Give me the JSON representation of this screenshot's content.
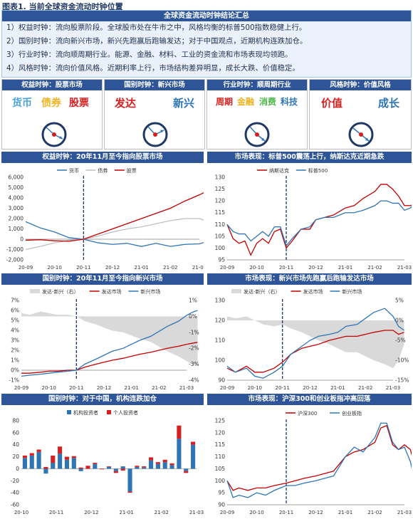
{
  "figure_title": "图表1. 当前全球资金流动时钟位置",
  "summary": {
    "heading": "全球资金流动时钟结论汇总",
    "lines": [
      "1）权益时钟：流向股票阶段。全球股市处在牛市之中，风格均衡的标普500指数稳健上行。",
      "2）国别时钟：流向新兴市场，新兴先跑赢后跑输发达；对于中国观点，近期机构连跌加仓。",
      "3）行业时钟：流向顺周期行业。能源、金融、材料、工业的资金流和市场表现均领跑。",
      "4）风格时钟：流向价值风格。近期利率上行，市场结构差异明显，成长大跌、价值稳定。"
    ]
  },
  "clocks": [
    {
      "heading": "权益时钟：股票市场",
      "labels": [
        {
          "text": "货币",
          "color": "#4aa3d8"
        },
        {
          "text": "债券",
          "color": "#f0b323"
        },
        {
          "text": "股票",
          "color": "#d62020"
        }
      ]
    },
    {
      "heading": "国别时钟：新兴市场",
      "labels": [
        {
          "text": "发达",
          "color": "#d62020"
        },
        {
          "text": "新兴",
          "color": "#2e75b6"
        }
      ]
    },
    {
      "heading": "行业时钟：顺周期行业",
      "labels": [
        {
          "text": "周期",
          "color": "#d62020"
        },
        {
          "text": "金融",
          "color": "#f0b323"
        },
        {
          "text": "消费",
          "color": "#4fb848"
        },
        {
          "text": "科技",
          "color": "#2e75b6"
        }
      ]
    },
    {
      "heading": "风格时钟：价值风格",
      "labels": [
        {
          "text": "价值",
          "color": "#d62020"
        },
        {
          "text": "成长",
          "color": "#2e75b6"
        }
      ]
    }
  ],
  "chart_data": [
    {
      "type": "line",
      "title": "权益时钟：20年11月至今指向股票市场",
      "x_ticks": [
        "20-09",
        "20-10",
        "20-11",
        "20-12",
        "21-01",
        "21-02",
        "21-03"
      ],
      "ylim": [
        -2000,
        6000
      ],
      "y_ticks": [
        "6,000",
        "5,000",
        "4,000",
        "3,000",
        "2,000",
        "1,000",
        "0",
        "-1,000",
        "-2,000"
      ],
      "marker_x": 2,
      "series": [
        {
          "name": "货币",
          "color": "#2e75b6",
          "x": [
            0,
            0.5,
            1,
            1.5,
            2,
            2.5,
            3,
            3.5,
            4,
            4.5,
            5,
            5.5,
            6,
            6.3
          ],
          "values": [
            1700,
            1100,
            700,
            150,
            0,
            -350,
            -500,
            -400,
            -700,
            -400,
            -700,
            -500,
            -450,
            -200
          ]
        },
        {
          "name": "债券",
          "color": "#bfbfbf",
          "x": [
            0,
            0.5,
            1,
            1.5,
            2,
            2.5,
            3,
            3.5,
            4,
            4.5,
            5,
            5.5,
            6,
            6.3
          ],
          "values": [
            -1000,
            -700,
            -350,
            -100,
            0,
            300,
            700,
            1000,
            1200,
            1500,
            1800,
            2000,
            2000,
            1700
          ]
        },
        {
          "name": "股票",
          "color": "#c00000",
          "x": [
            0,
            0.5,
            1,
            1.5,
            2,
            2.5,
            3,
            3.5,
            4,
            4.5,
            5,
            5.5,
            6,
            6.3
          ],
          "values": [
            -100,
            -50,
            -150,
            -200,
            0,
            500,
            1000,
            1500,
            2000,
            2500,
            3000,
            3700,
            4300,
            4700
          ]
        }
      ]
    },
    {
      "type": "line",
      "title": "市场表现：标普500震荡上行，纳斯达克近期急跌",
      "x_ticks": [
        "20-09",
        "20-10",
        "20-11",
        "20-12",
        "21-01",
        "21-02",
        "21-03"
      ],
      "ylim": [
        95,
        130
      ],
      "y_ticks": [
        "130",
        "125",
        "120",
        "115",
        "110",
        "105",
        "100",
        "95"
      ],
      "marker_x": 2,
      "series": [
        {
          "name": "纳斯达克",
          "color": "#c00000",
          "x": [
            0,
            0.2,
            0.4,
            0.6,
            0.8,
            1,
            1.2,
            1.4,
            1.6,
            1.8,
            2,
            2.2,
            2.5,
            2.8,
            3,
            3.3,
            3.6,
            4,
            4.3,
            4.6,
            5,
            5.2,
            5.4,
            5.6,
            5.8,
            6,
            6.2,
            6.4
          ],
          "values": [
            110,
            104,
            102,
            103,
            97,
            102,
            104,
            102,
            107,
            108,
            100,
            103,
            108,
            108,
            112,
            113,
            114,
            117,
            118,
            121,
            124,
            127,
            127,
            125,
            122,
            118,
            118,
            119
          ]
        },
        {
          "name": "标普500",
          "color": "#2e75b6",
          "x": [
            0,
            0.2,
            0.4,
            0.6,
            0.8,
            1,
            1.2,
            1.4,
            1.6,
            1.8,
            2,
            2.2,
            2.5,
            2.8,
            3,
            3.3,
            3.6,
            4,
            4.3,
            4.6,
            5,
            5.2,
            5.4,
            5.6,
            5.8,
            6,
            6.2,
            6.4
          ],
          "values": [
            110,
            107,
            106,
            106,
            103,
            105,
            107,
            105,
            109,
            109,
            101,
            104,
            108,
            109,
            112,
            113,
            113,
            115,
            115,
            116,
            118,
            120,
            120,
            119,
            119,
            116,
            117,
            120
          ]
        }
      ]
    },
    {
      "type": "line",
      "title": "国别时钟：20年11月至今指向新兴市场",
      "x_ticks": [
        "20-09",
        "20-10",
        "20-11",
        "20-12",
        "21-01",
        "21-02",
        "21-03"
      ],
      "ylim": [
        -1,
        7
      ],
      "y_ticks": [
        "7%",
        "6%",
        "5%",
        "4%",
        "3%",
        "2%",
        "1%",
        "0%",
        "-1%"
      ],
      "y2lim": [
        -4,
        1
      ],
      "y2_ticks": [
        "1%",
        "0%",
        "-1%",
        "-2%",
        "-3%",
        "-4%"
      ],
      "marker_x": 2,
      "series": [
        {
          "name": "发达-新兴（右）",
          "color": "#d9d9d9",
          "kind": "area",
          "axis": "right",
          "x": [
            0,
            0.3,
            0.7,
            1,
            1.3,
            1.7,
            2,
            2.3,
            2.7,
            3,
            3.3,
            3.7,
            4,
            4.3,
            4.7,
            5,
            5.3,
            5.7,
            6,
            6.2,
            6.4
          ],
          "values": [
            0.2,
            0.1,
            0.3,
            0.2,
            0.1,
            0.1,
            0,
            -0.3,
            -0.5,
            -0.7,
            -0.9,
            -1.0,
            -1.2,
            -1.4,
            -1.6,
            -1.9,
            -2.2,
            -2.5,
            -2.8,
            -3.0,
            -3.1
          ]
        },
        {
          "name": "发达市场",
          "color": "#c00000",
          "x": [
            0,
            0.3,
            0.7,
            1,
            1.3,
            1.7,
            2,
            2.3,
            2.7,
            3,
            3.3,
            3.7,
            4,
            4.3,
            4.7,
            5,
            5.3,
            5.7,
            6,
            6.2,
            6.4
          ],
          "values": [
            -0.3,
            -0.3,
            -0.2,
            -0.1,
            -0.1,
            0,
            0,
            0.3,
            0.6,
            0.8,
            1.0,
            1.2,
            1.4,
            1.6,
            1.8,
            2.0,
            2.2,
            2.4,
            2.6,
            2.7,
            2.8
          ]
        },
        {
          "name": "新兴市场",
          "color": "#2e75b6",
          "x": [
            0,
            0.3,
            0.7,
            1,
            1.3,
            1.7,
            2,
            2.3,
            2.7,
            3,
            3.3,
            3.7,
            4,
            4.3,
            4.7,
            5,
            5.3,
            5.7,
            6,
            6.2,
            6.4
          ],
          "values": [
            -0.6,
            -0.5,
            -0.4,
            -0.3,
            -0.2,
            -0.1,
            0,
            0.6,
            1.1,
            1.5,
            1.9,
            2.2,
            2.6,
            3.0,
            3.4,
            3.9,
            4.4,
            4.9,
            5.5,
            5.8,
            6.0
          ]
        }
      ]
    },
    {
      "type": "line",
      "title": "市场表现：新兴市场先跑赢后跑输发达市场",
      "x_ticks": [
        "20-09",
        "20-10",
        "20-11",
        "20-12",
        "21-01",
        "21-02",
        "21-03"
      ],
      "ylim": [
        90,
        130
      ],
      "y_ticks": [
        "130",
        "120",
        "110",
        "100",
        "90"
      ],
      "y2lim": [
        -15,
        5
      ],
      "y2_ticks": [
        "5%",
        "0%",
        "-5%",
        "-10%",
        "-15%"
      ],
      "marker_x": 2,
      "series": [
        {
          "name": "发达-新兴（右）",
          "color": "#d9d9d9",
          "kind": "area",
          "axis": "right",
          "x": [
            0,
            0.3,
            0.7,
            1,
            1.3,
            1.7,
            2,
            2.3,
            2.7,
            3,
            3.3,
            3.7,
            4,
            4.3,
            4.7,
            5,
            5.3,
            5.7,
            6,
            6.2,
            6.4
          ],
          "values": [
            1,
            0.5,
            1,
            0,
            -1,
            -1.5,
            -1,
            -2,
            -3,
            -4,
            -5,
            -6,
            -7,
            -8,
            -8,
            -9,
            -10,
            -11,
            -12,
            -10,
            -6
          ]
        },
        {
          "name": "发达市场",
          "color": "#c00000",
          "x": [
            0,
            0.3,
            0.7,
            1,
            1.3,
            1.7,
            2,
            2.3,
            2.7,
            3,
            3.3,
            3.7,
            4,
            4.3,
            4.7,
            5,
            5.3,
            5.7,
            6,
            6.2,
            6.4
          ],
          "values": [
            96,
            94,
            97,
            94,
            94,
            96,
            99,
            103,
            106,
            107,
            108,
            110,
            111,
            112,
            112,
            113,
            114,
            115,
            115,
            113,
            114
          ]
        },
        {
          "name": "新兴市场",
          "color": "#2e75b6",
          "x": [
            0,
            0.3,
            0.7,
            1,
            1.3,
            1.7,
            2,
            2.3,
            2.7,
            3,
            3.3,
            3.7,
            4,
            4.3,
            4.7,
            5,
            5.3,
            5.7,
            6,
            6.2,
            6.4
          ],
          "values": [
            97,
            94,
            96,
            92,
            91,
            94,
            97,
            103,
            107,
            110,
            112,
            113,
            114,
            117,
            118,
            121,
            124,
            126,
            122,
            117,
            115
          ]
        }
      ]
    },
    {
      "type": "bar",
      "title": "国别时钟：对于中国，机构连跌加仓",
      "x_ticks": [
        "20-10",
        "20-11",
        "20-12",
        "21-01",
        "21-02",
        "21-03"
      ],
      "ylim": [
        -60,
        80
      ],
      "y_ticks": [
        "80",
        "60",
        "40",
        "20",
        "0",
        "-20",
        "-40",
        "-60"
      ],
      "series": [
        {
          "name": "机构投资者",
          "color": "#2e75b6",
          "values": [
            18,
            22,
            28,
            -8,
            10,
            25,
            15,
            18,
            -4,
            0,
            8,
            0,
            3,
            -4,
            4,
            -38,
            3,
            2,
            14,
            8,
            11,
            6,
            50,
            -4,
            40
          ]
        },
        {
          "name": "个人投资者",
          "color": "#d62020",
          "values": [
            4,
            4,
            4,
            3,
            12,
            12,
            5,
            3,
            2,
            5,
            2,
            -1,
            1,
            -3,
            -3,
            -2,
            2,
            2,
            5,
            3,
            4,
            3,
            22,
            -3,
            5
          ]
        }
      ]
    },
    {
      "type": "line",
      "title": "市场表现：沪深300和创业板指冲高回落",
      "x_ticks": [
        "20-09",
        "20-10",
        "20-11",
        "20-12",
        "21-01",
        "21-02",
        "21-03"
      ],
      "ylim": [
        90,
        125
      ],
      "y_ticks": [
        "125",
        "120",
        "115",
        "110",
        "105",
        "100",
        "95",
        "90"
      ],
      "marker_x": 2,
      "series": [
        {
          "name": "沪深300",
          "color": "#c00000",
          "x": [
            0,
            0.2,
            0.4,
            0.7,
            1,
            1.3,
            1.6,
            2,
            2.3,
            2.6,
            3,
            3.3,
            3.6,
            4,
            4.3,
            4.6,
            5,
            5.2,
            5.4,
            5.6,
            5.8,
            6,
            6.2,
            6.4
          ],
          "values": [
            100,
            96,
            97,
            96,
            97,
            97,
            98,
            99,
            100,
            101,
            102,
            103,
            104,
            110,
            112,
            113,
            116,
            122,
            123,
            115,
            113,
            115,
            113,
            104
          ]
        },
        {
          "name": "创业板指",
          "color": "#2e75b6",
          "x": [
            0,
            0.2,
            0.4,
            0.7,
            1,
            1.3,
            1.6,
            2,
            2.3,
            2.6,
            3,
            3.3,
            3.6,
            4,
            4.3,
            4.6,
            5,
            5.2,
            5.4,
            5.6,
            5.8,
            6,
            6.2,
            6.4
          ],
          "values": [
            100,
            93,
            94,
            93,
            95,
            94,
            96,
            98,
            98,
            99,
            100,
            101,
            102,
            110,
            114,
            112,
            118,
            124,
            124,
            116,
            113,
            114,
            108,
            97
          ]
        }
      ]
    }
  ]
}
